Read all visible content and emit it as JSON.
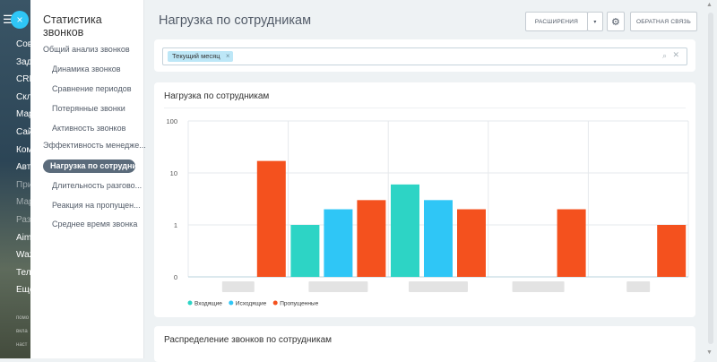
{
  "app_strip": {
    "items": [
      "Сов",
      "Зада",
      "CRM",
      "Скла",
      "Мар",
      "Сайт",
      "Ком",
      "Авто",
      "Прил",
      "Мар",
      "Разр",
      "Aimy",
      "Wazz",
      "Теле",
      "Ещё"
    ],
    "footer": [
      "помо",
      "вкла",
      "наст"
    ]
  },
  "sidebar": {
    "title": "Статистика звонков",
    "items": [
      {
        "label": "Общий анализ звонков",
        "kind": "section"
      },
      {
        "label": "Динамика звонков",
        "kind": "sub"
      },
      {
        "label": "Сравнение периодов",
        "kind": "sub"
      },
      {
        "label": "Потерянные звонки",
        "kind": "sub"
      },
      {
        "label": "Активность звонков",
        "kind": "sub"
      },
      {
        "label": "Эффективность менеджe...",
        "kind": "section"
      },
      {
        "label": "Нагрузка по сотрудни...",
        "kind": "active"
      },
      {
        "label": "Длительность разгово...",
        "kind": "sub"
      },
      {
        "label": "Реакция на пропущен...",
        "kind": "sub"
      },
      {
        "label": "Среднее время звонка",
        "kind": "sub"
      }
    ]
  },
  "header": {
    "title": "Нагрузка по сотрудникам",
    "extensions_label": "РАСШИРЕНИЯ",
    "feedback_label": "ОБРАТНАЯ СВЯЗЬ"
  },
  "filter": {
    "tag": "Текущий месяц",
    "tag_close": "×"
  },
  "card_title": "Нагрузка по сотрудникам",
  "card2_title": "Распределение звонков по сотрудникам",
  "colors": {
    "incoming": "#2dd4c5",
    "outgoing": "#2fc6f6",
    "missed": "#f4511e"
  },
  "chart_data": {
    "type": "bar",
    "y_scale": "log",
    "y_ticks": [
      "100",
      "10",
      "1",
      "0"
    ],
    "categories_count": 5,
    "series": [
      {
        "name": "Входящие",
        "values": [
          0,
          1,
          6,
          0,
          0
        ]
      },
      {
        "name": "Исходящие",
        "values": [
          0,
          2,
          3,
          0,
          0
        ]
      },
      {
        "name": "Пропущенные",
        "values": [
          17,
          3,
          2,
          2,
          1
        ]
      }
    ],
    "legend_placement": "bottom-left"
  }
}
